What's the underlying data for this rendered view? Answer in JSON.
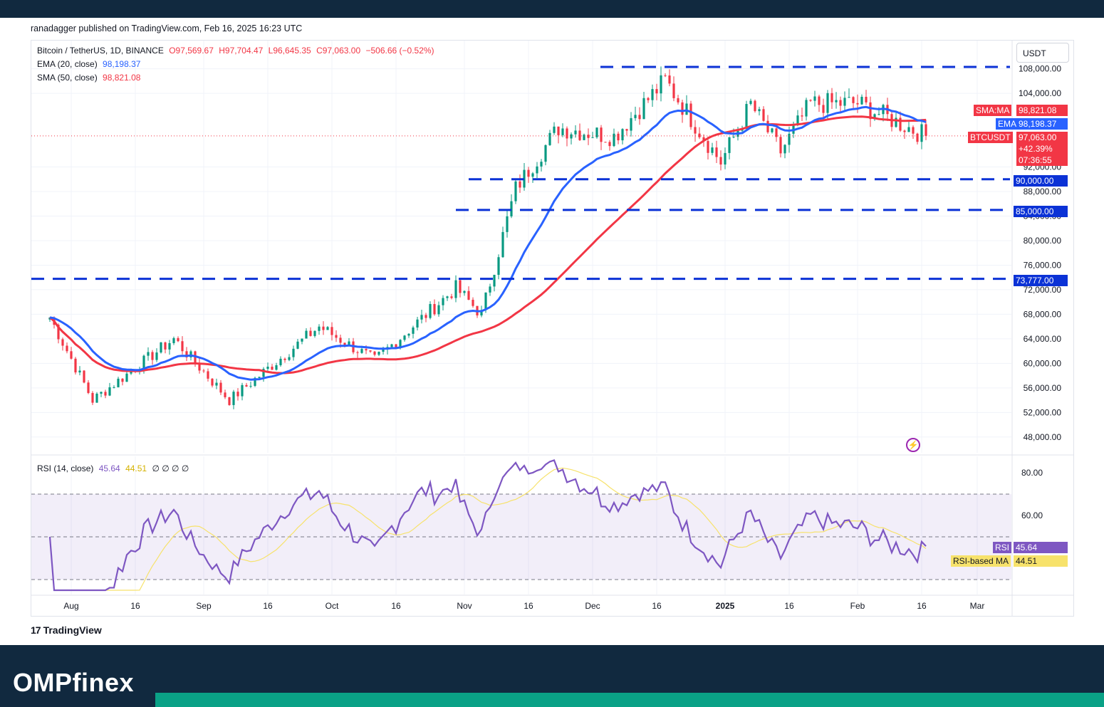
{
  "header": {
    "publisher": "ranadagger published on TradingView.com, Feb 16, 2025 16:23 UTC"
  },
  "legend": {
    "symbol": "Bitcoin / TetherUS, 1D, BINANCE",
    "open": "O97,569.67",
    "high": "H97,704.47",
    "low": "L96,645.35",
    "close": "C97,063.00",
    "change": "−506.66 (−0.52%)",
    "ema_label": "EMA (20, close)",
    "ema_value": "98,198.37",
    "sma_label": "SMA (50, close)",
    "sma_value": "98,821.08",
    "rsi_label": "RSI (14, close)",
    "rsi_value": "45.64",
    "rsi_ma_value": "44.51",
    "rsi_placeholders": "∅ ∅ ∅ ∅"
  },
  "currency": "USDT",
  "price_tags": {
    "sma_name": "SMA:MA",
    "sma_value": "98,821.08",
    "ema_name": "EMA",
    "ema_value": "98,198.37",
    "symbol_name": "BTCUSDT",
    "price": "97,063.00",
    "pct": "+42.39%",
    "countdown": "07:36:55",
    "level_90": "90,000.00",
    "level_85": "85,000.00",
    "level_73": "73,777.00",
    "rsi_name": "RSI",
    "rsi_value": "45.64",
    "rsi_ma_name": "RSI-based MA",
    "rsi_ma_value": "44.51"
  },
  "footer": {
    "tradingview": "TradingView"
  },
  "brand": {
    "name_a": "OMP",
    "name_b": "finex"
  },
  "colors": {
    "ema": "#2962ff",
    "sma": "#f23645",
    "up": "#089981",
    "down": "#f23645",
    "rsi": "#7e57c2",
    "rsi_ma": "#f7e26b",
    "levels": "#0b32d6"
  },
  "chart_data": {
    "type": "candlestick",
    "symbol": "BTCUSDT",
    "timeframe": "1D",
    "x_tick_labels": [
      "Aug",
      "16",
      "Sep",
      "16",
      "Oct",
      "16",
      "Nov",
      "16",
      "Dec",
      "16",
      "2025",
      "16",
      "Feb",
      "16",
      "Mar"
    ],
    "y_tick_labels": [
      "108,000.00",
      "104,000.00",
      "92,000.00",
      "88,000.00",
      "84,000.00",
      "80,000.00",
      "76,000.00",
      "72,000.00",
      "68,000.00",
      "64,000.00",
      "60,000.00",
      "56,000.00",
      "52,000.00",
      "48,000.00"
    ],
    "y_range": [
      45000,
      110000
    ],
    "horizontal_levels": [
      108300,
      90000,
      85000,
      73777
    ],
    "key_points_close": [
      {
        "date": "2024-07-26",
        "close": 67500
      },
      {
        "date": "2024-08-05",
        "close": 54000
      },
      {
        "date": "2024-08-24",
        "close": 64000
      },
      {
        "date": "2024-09-06",
        "close": 54000
      },
      {
        "date": "2024-09-27",
        "close": 66000
      },
      {
        "date": "2024-10-10",
        "close": 60500
      },
      {
        "date": "2024-10-29",
        "close": 72300
      },
      {
        "date": "2024-11-04",
        "close": 68000
      },
      {
        "date": "2024-11-12",
        "close": 88500
      },
      {
        "date": "2024-11-22",
        "close": 98400
      },
      {
        "date": "2024-12-05",
        "close": 97000
      },
      {
        "date": "2024-12-17",
        "close": 106100
      },
      {
        "date": "2024-12-30",
        "close": 92800
      },
      {
        "date": "2025-01-06",
        "close": 102200
      },
      {
        "date": "2025-01-13",
        "close": 94500
      },
      {
        "date": "2025-01-20",
        "close": 102300
      },
      {
        "date": "2025-01-31",
        "close": 102400
      },
      {
        "date": "2025-02-03",
        "close": 101400
      },
      {
        "date": "2025-02-16",
        "close": 97063
      }
    ],
    "ema20_last": 98198.37,
    "sma50_last": 98821.08,
    "rsi": {
      "y_tick_labels": [
        "80.00",
        "60.00"
      ],
      "y_range": [
        30,
        90
      ],
      "bands": [
        70,
        50,
        30
      ],
      "last": 45.64,
      "ma_last": 44.51
    }
  }
}
